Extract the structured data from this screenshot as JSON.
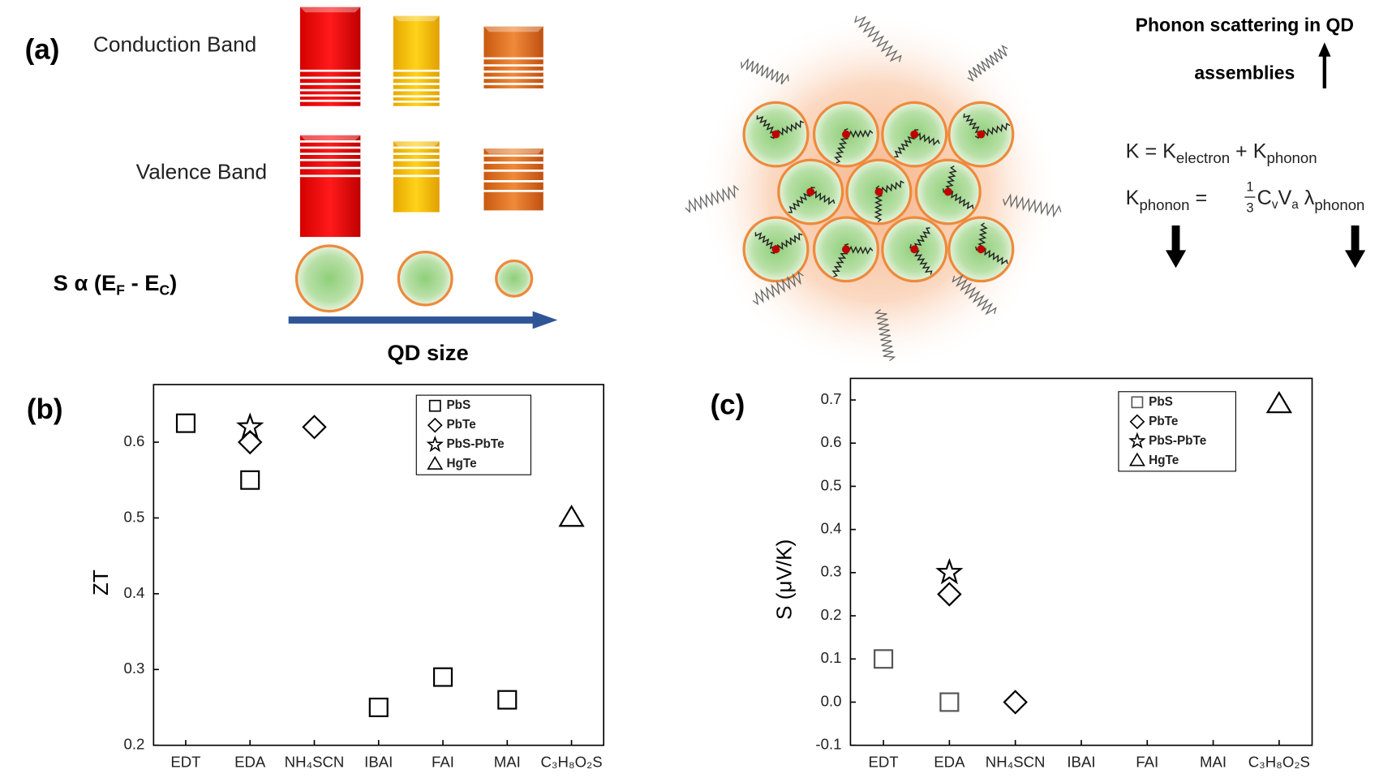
{
  "panel_a": {
    "label": "(a)",
    "conduction": "Conduction Band",
    "valence": "Valence Band",
    "seebeck": [
      "S α (E",
      "F",
      " - E",
      "C",
      ")"
    ],
    "size_axis": "QD size",
    "phonon_title": [
      "Phonon scattering in QD",
      "assemblies"
    ],
    "formula1": [
      "K = K",
      "electron",
      " + K",
      "phonon"
    ],
    "formula2": [
      "K",
      "phonon",
      " = ",
      "1",
      "3",
      " C",
      "v",
      "V",
      "a",
      " λ",
      "phonon"
    ]
  },
  "chart_data": [
    {
      "type": "scatter",
      "label": "(b)",
      "ylabel": "ZT",
      "categories": [
        "EDT",
        "EDA",
        "NH₄SCN",
        "IBAI",
        "FAI",
        "MAI",
        "C₃H₈O₂S"
      ],
      "ylim": [
        0.2,
        0.676
      ],
      "yticks": [
        0.2,
        0.3,
        0.4,
        0.5,
        0.6
      ],
      "legend": "upper right",
      "series": [
        {
          "name": "PbS",
          "marker": "square",
          "color": "#000000",
          "values": [
            0.625,
            0.55,
            null,
            0.25,
            0.29,
            0.26,
            null
          ]
        },
        {
          "name": "PbTe",
          "marker": "diamond",
          "color": "#000000",
          "values": [
            null,
            0.6,
            0.62,
            null,
            null,
            null,
            null
          ]
        },
        {
          "name": "PbS-PbTe",
          "marker": "star",
          "color": "#000000",
          "values": [
            null,
            0.62,
            null,
            null,
            null,
            null,
            null
          ]
        },
        {
          "name": "HgTe",
          "marker": "triangle",
          "color": "#000000",
          "values": [
            null,
            null,
            null,
            null,
            null,
            null,
            0.5
          ]
        }
      ]
    },
    {
      "type": "scatter",
      "label": "(c)",
      "ylabel": "S (μV/K)",
      "categories": [
        "EDT",
        "EDA",
        "NH₄SCN",
        "IBAI",
        "FAI",
        "MAI",
        "C₃H₈O₂S"
      ],
      "ylim": [
        -0.1,
        0.75
      ],
      "yticks": [
        -0.1,
        {
          "value": 0,
          "label": "0.0"
        },
        0.1,
        0.2,
        0.3,
        0.4,
        0.5,
        0.6,
        0.7
      ],
      "legend": "upper right",
      "series": [
        {
          "name": "PbS",
          "marker": "square",
          "color": "#555555",
          "values": [
            0.1,
            0,
            null,
            null,
            null,
            null,
            null
          ]
        },
        {
          "name": "PbTe",
          "marker": "diamond",
          "color": "#000000",
          "values": [
            null,
            0.25,
            0,
            null,
            null,
            null,
            null
          ]
        },
        {
          "name": "PbS-PbTe",
          "marker": "star",
          "color": "#000000",
          "values": [
            null,
            0.3,
            null,
            null,
            null,
            null,
            null
          ]
        },
        {
          "name": "HgTe",
          "marker": "triangle",
          "color": "#000000",
          "values": [
            null,
            null,
            null,
            null,
            null,
            null,
            0.69
          ]
        }
      ]
    }
  ]
}
